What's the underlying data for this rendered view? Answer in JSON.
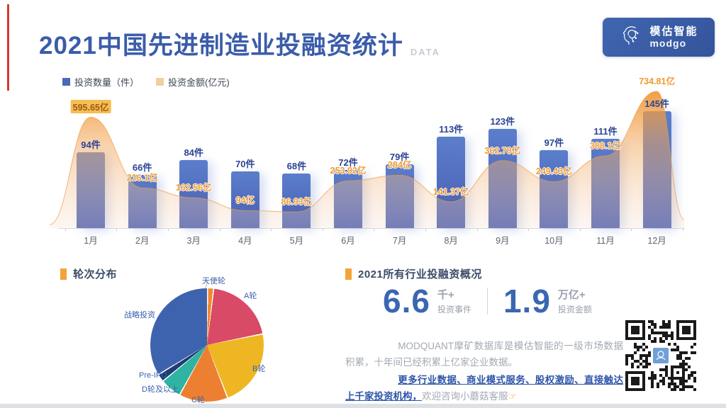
{
  "page": {
    "title": "2021中国先进制造业投融资统计",
    "title_suffix": "DATA",
    "accent_color": "#d6392e"
  },
  "brand": {
    "name_cn": "模估智能",
    "name_en": "modgo",
    "logo_color": "#3a5ca8"
  },
  "chart_data": [
    {
      "type": "bar",
      "categories": [
        "1月",
        "2月",
        "3月",
        "4月",
        "5月",
        "6月",
        "7月",
        "8月",
        "9月",
        "10月",
        "11月",
        "12月"
      ],
      "series": [
        {
          "name": "投资数量（件）",
          "type": "bar",
          "unit": "件",
          "color": "#4a69b6",
          "values": [
            94,
            66,
            84,
            70,
            68,
            72,
            79,
            113,
            123,
            97,
            111,
            145
          ]
        },
        {
          "name": "投资金额(亿元)",
          "type": "area",
          "unit": "亿",
          "color": "#f09a3a",
          "values": [
            595.65,
            216.1,
            162.56,
            94,
            86.93,
            253.92,
            284,
            141.37,
            362.78,
            249.43,
            388.1,
            734.81
          ],
          "highlight_index": 0
        }
      ],
      "legend_position": "top-left",
      "grid": false
    },
    {
      "type": "pie",
      "title": "轮次分布",
      "slices": [
        {
          "label": "天使轮",
          "percent": 1.7,
          "color": "#ee8a2f"
        },
        {
          "label": "A轮",
          "percent": 20.0,
          "color": "#d94a66"
        },
        {
          "label": "B轮",
          "percent": 22.2,
          "color": "#eeb623"
        },
        {
          "label": "C轮",
          "percent": 13.9,
          "color": "#ec8030"
        },
        {
          "label": "D轮及以上",
          "percent": 6.1,
          "color": "#2fb3a2"
        },
        {
          "label": "Pre-IPO",
          "percent": 2.2,
          "color": "#1d3e73"
        },
        {
          "label": "战略投资",
          "percent": 33.9,
          "color": "#3e63ae"
        }
      ]
    }
  ],
  "summary": {
    "title": "2021所有行业投融资概况",
    "stats": [
      {
        "value": "6.6",
        "unit": "千+",
        "label": "投资事件"
      },
      {
        "value": "1.9",
        "unit": "万亿+",
        "label": "投资金额"
      }
    ],
    "paragraph": "MODQUANT摩矿数据库是模估智能的一级市场数据积累，十年间已经积累上亿家企业数据。",
    "cta_bold": "更多行业数据、商业模式服务、股权激励、直接触达上千家投资机构，",
    "cta_rest": "欢迎咨询小蘑菇客服",
    "pointer_icon": "☞"
  }
}
